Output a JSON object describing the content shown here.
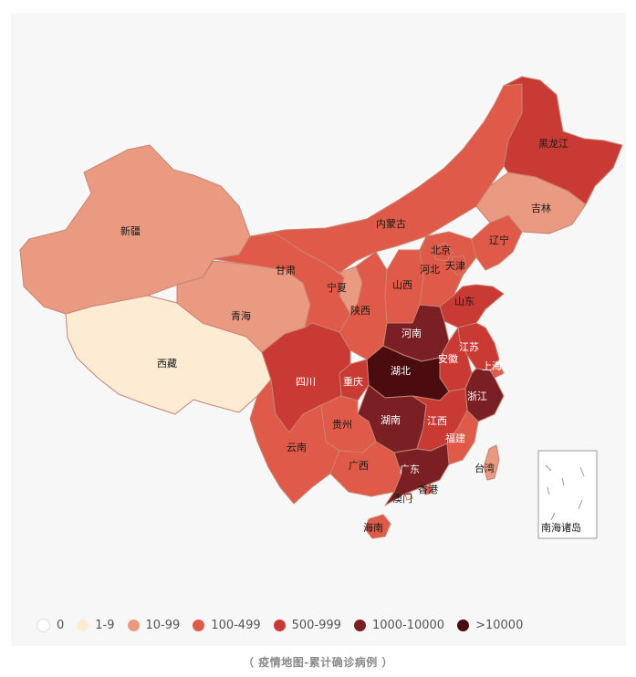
{
  "provinces": [
    {
      "name": "黑龙江",
      "bin": "500-999",
      "color": "#c93a35"
    },
    {
      "name": "吉林",
      "bin": "10-99",
      "color": "#eb9a82"
    },
    {
      "name": "辽宁",
      "bin": "100-499",
      "color": "#df5a48"
    },
    {
      "name": "内蒙古",
      "bin": "100-499",
      "color": "#df5a48"
    },
    {
      "name": "北京",
      "bin": "100-499",
      "color": "#df5a48"
    },
    {
      "name": "天津",
      "bin": "100-499",
      "color": "#df5a48"
    },
    {
      "name": "河北",
      "bin": "100-499",
      "color": "#df5a48"
    },
    {
      "name": "山东",
      "bin": "500-999",
      "color": "#c93a35"
    },
    {
      "name": "新疆",
      "bin": "10-99",
      "color": "#eb9a82"
    },
    {
      "name": "西藏",
      "bin": "1-9",
      "color": "#fdebd3"
    },
    {
      "name": "青海",
      "bin": "10-99",
      "color": "#eb9a82"
    },
    {
      "name": "甘肃",
      "bin": "100-499",
      "color": "#df5a48"
    },
    {
      "name": "宁夏",
      "bin": "10-99",
      "color": "#eb9a82"
    },
    {
      "name": "陕西",
      "bin": "100-499",
      "color": "#df5a48"
    },
    {
      "name": "山西",
      "bin": "100-499",
      "color": "#df5a48"
    },
    {
      "name": "河南",
      "bin": "1000-10000",
      "color": "#7a1f24"
    },
    {
      "name": "湖北",
      "bin": ">10000",
      "color": "#4a0c0f"
    },
    {
      "name": "安徽",
      "bin": "500-999",
      "color": "#c93a35"
    },
    {
      "name": "江苏",
      "bin": "500-999",
      "color": "#c93a35"
    },
    {
      "name": "上海",
      "bin": "100-499",
      "color": "#df5a48"
    },
    {
      "name": "浙江",
      "bin": "1000-10000",
      "color": "#7a1f24"
    },
    {
      "name": "四川",
      "bin": "500-999",
      "color": "#c93a35"
    },
    {
      "name": "重庆",
      "bin": "500-999",
      "color": "#c93a35"
    },
    {
      "name": "贵州",
      "bin": "100-499",
      "color": "#df5a48"
    },
    {
      "name": "云南",
      "bin": "100-499",
      "color": "#df5a48"
    },
    {
      "name": "湖南",
      "bin": "1000-10000",
      "color": "#7a1f24"
    },
    {
      "name": "江西",
      "bin": "500-999",
      "color": "#c93a35"
    },
    {
      "name": "福建",
      "bin": "100-499",
      "color": "#df5a48"
    },
    {
      "name": "广东",
      "bin": "1000-10000",
      "color": "#7a1f24"
    },
    {
      "name": "广西",
      "bin": "100-499",
      "color": "#df5a48"
    },
    {
      "name": "海南",
      "bin": "100-499",
      "color": "#df5a48"
    },
    {
      "name": "香港",
      "bin": "100-499",
      "color": "#df5a48"
    },
    {
      "name": "澳门",
      "bin": "1-9",
      "color": "#fdebd3"
    },
    {
      "name": "台湾",
      "bin": "10-99",
      "color": "#eb9a82"
    }
  ],
  "inset_label": "南海诸岛",
  "legend": [
    {
      "label": "0",
      "color": "#ffffff"
    },
    {
      "label": "1-9",
      "color": "#fdebd3"
    },
    {
      "label": "10-99",
      "color": "#eb9a82"
    },
    {
      "label": "100-499",
      "color": "#df5a48"
    },
    {
      "label": "500-999",
      "color": "#c93a35"
    },
    {
      "label": "1000-10000",
      "color": "#7a1f24"
    },
    {
      "label": ">10000",
      "color": "#4a0c0f"
    }
  ],
  "caption": "（ 疫情地图-累计确诊病例 ）"
}
